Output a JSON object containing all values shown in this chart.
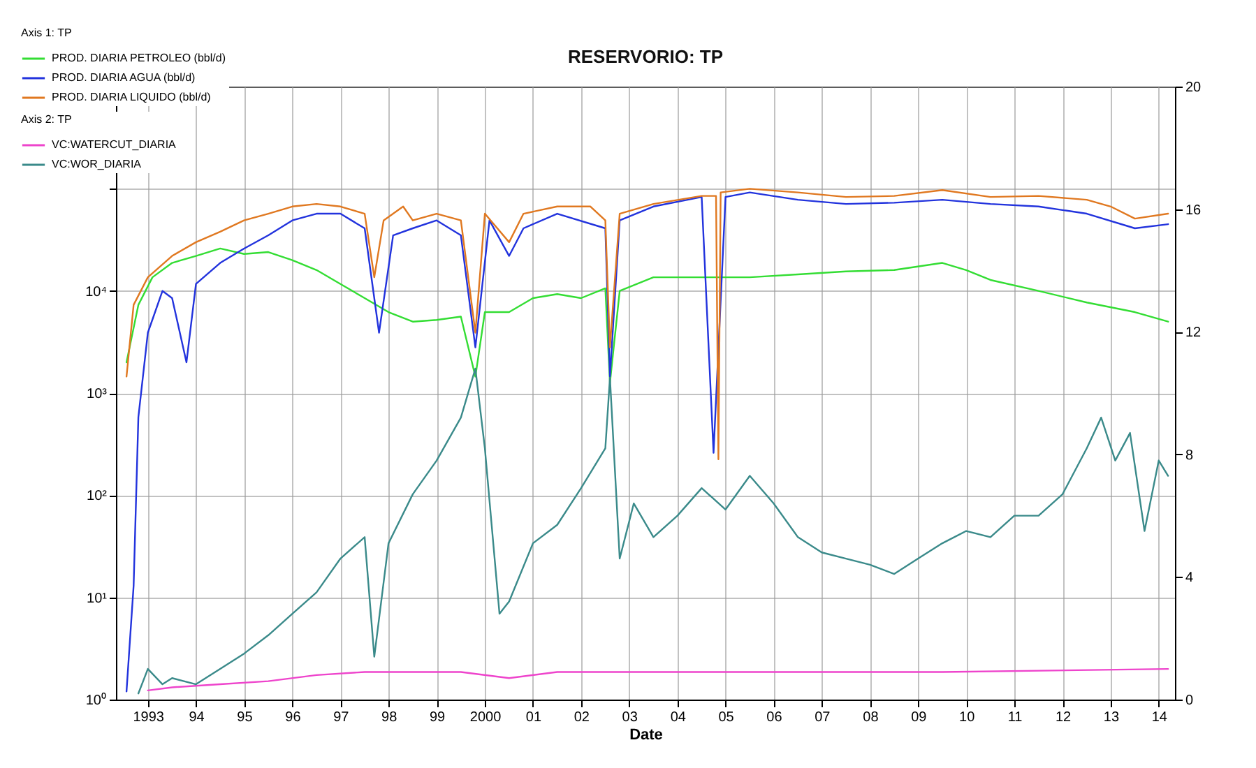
{
  "chart_data": {
    "type": "line",
    "title": "RESERVORIO: TP",
    "xlabel": "Date",
    "legend_title": "Axis 1: TP",
    "annotations": [
      "Axis 2: TP"
    ],
    "xlim": [
      "1992-11-01",
      "2014-11-01"
    ],
    "xticks": [
      {
        "value": "1993-07-01",
        "label": "1993"
      },
      {
        "value": "1994-07-01",
        "label": "94"
      },
      {
        "value": "1995-07-01",
        "label": "95"
      },
      {
        "value": "1996-07-01",
        "label": "96"
      },
      {
        "value": "1997-07-01",
        "label": "97"
      },
      {
        "value": "1998-07-01",
        "label": "98"
      },
      {
        "value": "1999-07-01",
        "label": "99"
      },
      {
        "value": "2000-07-01",
        "label": "2000"
      },
      {
        "value": "2001-07-01",
        "label": "01"
      },
      {
        "value": "2002-07-01",
        "label": "02"
      },
      {
        "value": "2003-07-01",
        "label": "03"
      },
      {
        "value": "2004-07-01",
        "label": "04"
      },
      {
        "value": "2005-07-01",
        "label": "05"
      },
      {
        "value": "2006-07-01",
        "label": "06"
      },
      {
        "value": "2007-07-01",
        "label": "07"
      },
      {
        "value": "2008-07-01",
        "label": "08"
      },
      {
        "value": "2009-07-01",
        "label": "09"
      },
      {
        "value": "2010-07-01",
        "label": "10"
      },
      {
        "value": "2011-07-01",
        "label": "11"
      },
      {
        "value": "2012-07-01",
        "label": "12"
      },
      {
        "value": "2013-07-01",
        "label": "13"
      },
      {
        "value": "2014-07-01",
        "label": "14"
      }
    ],
    "log": "y",
    "ylim": [
      1,
      1000000
    ],
    "yticks": [
      {
        "value": 1,
        "label": "10⁰"
      },
      {
        "value": 10,
        "label": "10¹"
      },
      {
        "value": 100,
        "label": "10²"
      },
      {
        "value": 1000,
        "label": "10³"
      },
      {
        "value": 10000,
        "label": "10⁴"
      },
      {
        "value": 100000,
        "label": null
      },
      {
        "value": 1000000,
        "label": null
      }
    ],
    "y2lim": [
      0,
      20
    ],
    "y2ticks": [
      0,
      4,
      8,
      12,
      16,
      20
    ],
    "grid": true,
    "legend": "top left",
    "series": [
      {
        "name": "PROD. DIARIA PETROLEO (bbl/d)",
        "color": "#33dd33",
        "x": [
          "1993-01-20",
          "1993-04-20",
          "1993-08-05",
          "1994-01-01",
          "1994-07-01",
          "1995-01-01",
          "1995-07-01",
          "1996-01-01",
          "1996-07-01",
          "1997-01-01",
          "1997-07-01",
          "1998-01-01",
          "1998-07-01",
          "1999-01-01",
          "1999-07-01",
          "2000-01-01",
          "2000-04-20",
          "2000-07-01",
          "2001-01-01",
          "2001-07-01",
          "2002-01-01",
          "2002-07-01",
          "2003-01-01",
          "2003-02-05",
          "2003-04-20",
          "2004-01-01",
          "2005-01-01",
          "2006-01-01",
          "2007-01-01",
          "2008-01-01",
          "2009-01-01",
          "2010-01-01",
          "2010-07-01",
          "2011-01-01",
          "2012-01-01",
          "2013-01-01",
          "2014-01-01",
          "2014-09-10"
        ],
        "values": [
          2000,
          7300,
          13600,
          18800,
          22000,
          26000,
          23000,
          24000,
          20000,
          16000,
          11700,
          8500,
          6200,
          5000,
          5200,
          5600,
          1450,
          6200,
          6200,
          8500,
          9300,
          8500,
          10600,
          1260,
          10000,
          13600,
          13600,
          13600,
          14500,
          15500,
          16000,
          18800,
          16000,
          12800,
          10000,
          7700,
          6200,
          5000
        ]
      },
      {
        "name": "PROD. DIARIA AGUA (bbl/d)",
        "color": "#2233dd",
        "x": [
          "1993-01-20",
          "1993-03-15",
          "1993-04-20",
          "1993-07-01",
          "1993-10-20",
          "1994-01-01",
          "1994-04-20",
          "1994-07-01",
          "1995-01-01",
          "1995-07-01",
          "1996-01-01",
          "1996-07-01",
          "1997-01-01",
          "1997-07-01",
          "1998-01-01",
          "1998-04-20",
          "1998-08-05",
          "1999-01-01",
          "1999-07-01",
          "2000-01-01",
          "2000-04-20",
          "2000-08-05",
          "2001-01-01",
          "2001-04-20",
          "2002-01-01",
          "2003-01-01",
          "2003-02-05",
          "2003-04-20",
          "2004-01-01",
          "2005-01-01",
          "2005-04-01",
          "2005-07-01",
          "2006-01-01",
          "2007-01-01",
          "2008-01-01",
          "2009-01-01",
          "2010-01-01",
          "2011-01-01",
          "2012-01-01",
          "2013-01-01",
          "2014-01-01",
          "2014-09-10"
        ],
        "values": [
          1.2,
          13,
          580,
          3900,
          10000,
          8500,
          2000,
          11700,
          18800,
          26000,
          35000,
          49000,
          57000,
          57000,
          41000,
          3900,
          35000,
          41000,
          49000,
          35000,
          2800,
          49000,
          22000,
          41000,
          57000,
          41000,
          1450,
          49000,
          67000,
          83000,
          260,
          83000,
          92000,
          78000,
          71000,
          73000,
          78000,
          71000,
          67000,
          57000,
          41000,
          45000
        ]
      },
      {
        "name": "PROD. DIARIA LIQUIDO (bbl/d)",
        "color": "#e07820",
        "x": [
          "1993-01-20",
          "1993-03-15",
          "1993-07-01",
          "1994-01-01",
          "1994-07-01",
          "1995-01-01",
          "1995-07-01",
          "1996-01-01",
          "1996-07-01",
          "1997-01-01",
          "1997-07-01",
          "1998-01-01",
          "1998-03-15",
          "1998-05-25",
          "1998-10-20",
          "1999-01-01",
          "1999-07-01",
          "2000-01-01",
          "2000-04-20",
          "2000-07-01",
          "2001-01-01",
          "2001-04-20",
          "2002-01-01",
          "2002-09-10",
          "2003-01-01",
          "2003-02-05",
          "2003-04-20",
          "2004-01-01",
          "2005-01-01",
          "2005-04-20",
          "2005-05-08",
          "2005-05-25",
          "2006-01-01",
          "2007-01-01",
          "2008-01-01",
          "2009-01-01",
          "2010-01-01",
          "2011-01-01",
          "2012-01-01",
          "2013-01-01",
          "2013-07-01",
          "2014-01-01",
          "2014-09-10"
        ],
        "values": [
          1450,
          7300,
          13600,
          22000,
          30000,
          38000,
          49000,
          57000,
          67000,
          71000,
          67000,
          57000,
          13600,
          49000,
          67000,
          49000,
          57000,
          49000,
          3900,
          57000,
          30000,
          57000,
          67000,
          67000,
          49000,
          2800,
          57000,
          71000,
          85000,
          85000,
          225,
          92000,
          100000,
          92000,
          83000,
          85000,
          97000,
          83000,
          85000,
          78000,
          67000,
          51000,
          57000
        ]
      },
      {
        "name": "VC:WATERCUT_DIARIA",
        "color": "#ee44cc",
        "axis": "y2",
        "x": [
          "1993-07-01",
          "1994-01-01",
          "1995-01-01",
          "1996-01-01",
          "1997-01-01",
          "1998-01-01",
          "2000-01-01",
          "2001-01-01",
          "2002-01-01",
          "2005-01-01",
          "2010-01-01",
          "2014-09-10"
        ],
        "values": [
          0.3,
          0.4,
          0.5,
          0.6,
          0.8,
          0.9,
          0.9,
          0.7,
          0.9,
          0.9,
          0.9,
          1.0
        ]
      },
      {
        "name": "VC:WOR_DIARIA",
        "color": "#3a8a8a",
        "axis": "y2",
        "x": [
          "1993-04-20",
          "1993-07-01",
          "1993-10-20",
          "1994-01-01",
          "1994-07-01",
          "1995-01-01",
          "1995-07-01",
          "1996-01-01",
          "1996-07-01",
          "1997-01-01",
          "1997-07-01",
          "1998-01-01",
          "1998-03-15",
          "1998-07-01",
          "1999-01-01",
          "1999-07-01",
          "2000-01-01",
          "2000-04-20",
          "2000-07-01",
          "2000-10-20",
          "2001-01-01",
          "2001-07-01",
          "2002-01-01",
          "2002-07-01",
          "2003-01-01",
          "2003-02-05",
          "2003-04-20",
          "2003-08-05",
          "2004-01-01",
          "2004-07-01",
          "2005-01-01",
          "2005-07-01",
          "2006-01-01",
          "2006-07-01",
          "2007-01-01",
          "2007-07-01",
          "2008-01-01",
          "2008-07-01",
          "2009-01-01",
          "2009-07-01",
          "2010-01-01",
          "2010-07-01",
          "2011-01-01",
          "2011-07-01",
          "2012-01-01",
          "2012-07-01",
          "2013-01-01",
          "2013-04-20",
          "2013-08-05",
          "2013-11-25",
          "2014-03-15",
          "2014-07-01",
          "2014-09-10"
        ],
        "values": [
          0.2,
          1.0,
          0.5,
          0.7,
          0.5,
          1.0,
          1.5,
          2.1,
          2.8,
          3.5,
          4.6,
          5.3,
          1.4,
          5.1,
          6.7,
          7.8,
          9.2,
          10.8,
          8.2,
          2.8,
          3.2,
          5.1,
          5.7,
          6.9,
          8.2,
          10.5,
          4.6,
          6.4,
          5.3,
          6.0,
          6.9,
          6.2,
          7.3,
          6.4,
          5.3,
          4.8,
          4.6,
          4.4,
          4.1,
          4.6,
          5.1,
          5.5,
          5.3,
          6.0,
          6.0,
          6.7,
          8.2,
          9.2,
          7.8,
          8.7,
          5.5,
          7.8,
          7.3
        ]
      }
    ]
  }
}
